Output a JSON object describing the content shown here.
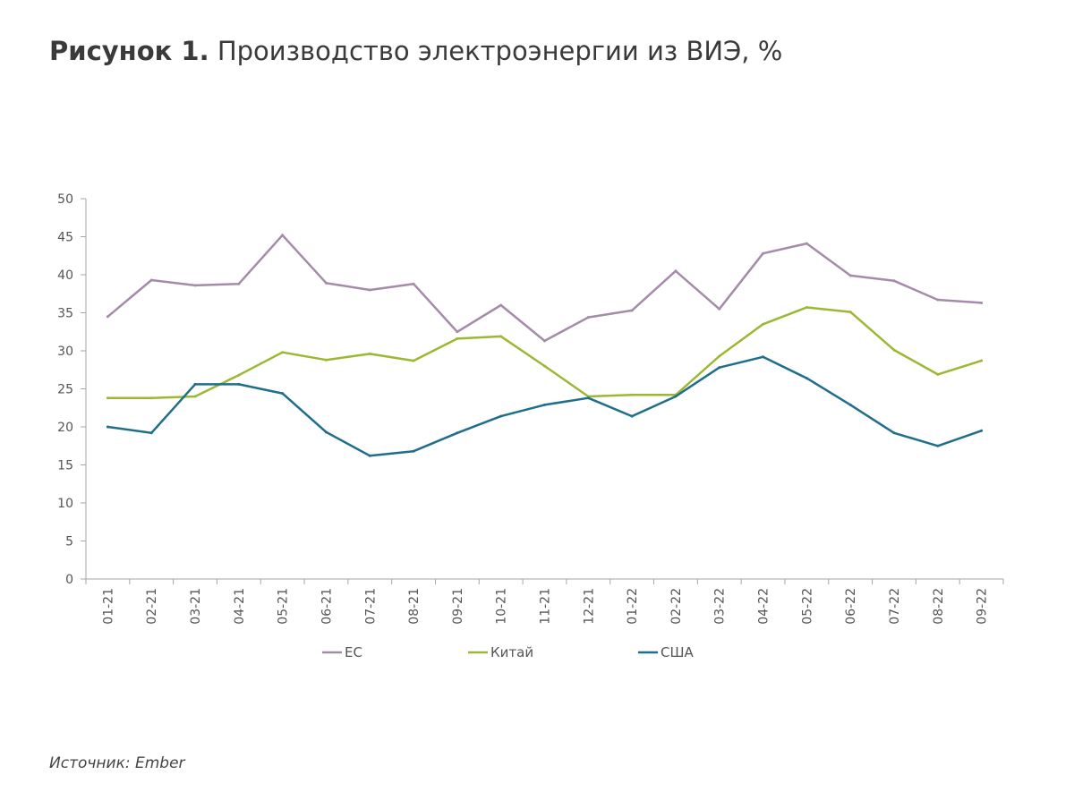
{
  "title": {
    "bold": "Рисунок 1.",
    "rest": "Производство электроэнергии из ВИЭ, %"
  },
  "source": "Источник: Ember",
  "chart_data": {
    "type": "line",
    "ylim": [
      0,
      50
    ],
    "yticks": [
      0,
      5,
      10,
      15,
      20,
      25,
      30,
      35,
      40,
      45,
      50
    ],
    "categories": [
      "01-21",
      "02-21",
      "03-21",
      "04-21",
      "05-21",
      "06-21",
      "07-21",
      "08-21",
      "09-21",
      "10-21",
      "11-21",
      "12-21",
      "01-22",
      "02-22",
      "03-22",
      "04-22",
      "05-22",
      "06-22",
      "07-22",
      "08-22",
      "09-22"
    ],
    "series": [
      {
        "name": "ЕС",
        "color": "#a58aaa",
        "values": [
          34.5,
          39.3,
          38.6,
          38.8,
          45.2,
          38.9,
          38.0,
          38.8,
          32.5,
          36.0,
          31.3,
          34.4,
          35.3,
          40.5,
          35.5,
          42.8,
          44.1,
          39.9,
          39.2,
          36.7,
          36.3
        ]
      },
      {
        "name": "Китай",
        "color": "#9cb832",
        "values": [
          23.8,
          23.8,
          24.0,
          26.8,
          29.8,
          28.8,
          29.6,
          28.7,
          31.6,
          31.9,
          28.0,
          24.0,
          24.2,
          24.2,
          29.3,
          33.5,
          35.7,
          35.1,
          30.1,
          26.9,
          28.7
        ]
      },
      {
        "name": "США",
        "color": "#1f6e8c",
        "values": [
          20.0,
          19.2,
          25.6,
          25.6,
          24.4,
          19.3,
          16.2,
          16.8,
          19.2,
          21.4,
          22.9,
          23.8,
          21.4,
          24.0,
          27.8,
          29.2,
          26.4,
          22.9,
          19.2,
          17.5,
          19.5
        ]
      }
    ],
    "legend_position": "bottom",
    "grid": false
  }
}
